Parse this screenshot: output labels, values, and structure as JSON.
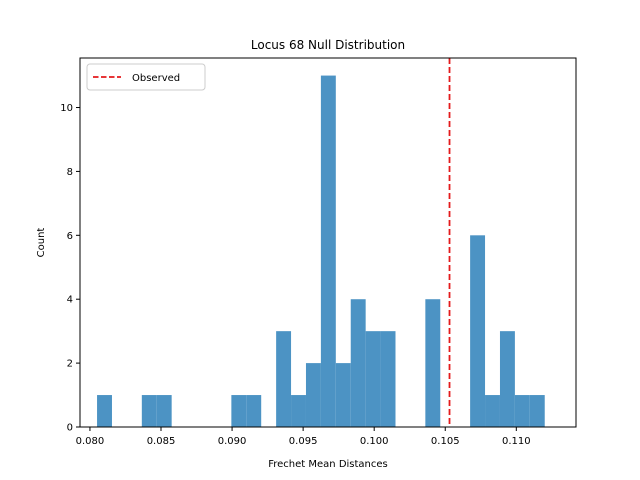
{
  "chart_data": {
    "type": "bar",
    "subtype": "histogram",
    "title": "Locus 68 Null Distribution",
    "xlabel": "Frechet Mean Distances",
    "ylabel": "Count",
    "xlim": [
      0.0793,
      0.1142
    ],
    "ylim": [
      0,
      11.55
    ],
    "xticks": [
      0.08,
      0.085,
      0.09,
      0.095,
      0.1,
      0.105,
      0.11
    ],
    "xtick_labels": [
      "0.080",
      "0.085",
      "0.090",
      "0.095",
      "0.100",
      "0.105",
      "0.110"
    ],
    "yticks": [
      0,
      2,
      4,
      6,
      8,
      10
    ],
    "ytick_labels": [
      "0",
      "2",
      "4",
      "6",
      "8",
      "10"
    ],
    "bin_start": 0.0805,
    "bin_width": 0.00105,
    "counts": [
      1,
      0,
      0,
      1,
      1,
      0,
      0,
      0,
      0,
      1,
      1,
      0,
      3,
      1,
      2,
      11,
      2,
      4,
      3,
      3,
      0,
      0,
      4,
      0,
      0,
      6,
      1,
      3,
      1,
      1
    ],
    "bar_color": "#4c93c4",
    "observed": {
      "value": 0.1053,
      "label": "Observed",
      "color": "#e41a1c",
      "style": "dashed"
    },
    "legend_position": "upper-left",
    "grid": false
  }
}
